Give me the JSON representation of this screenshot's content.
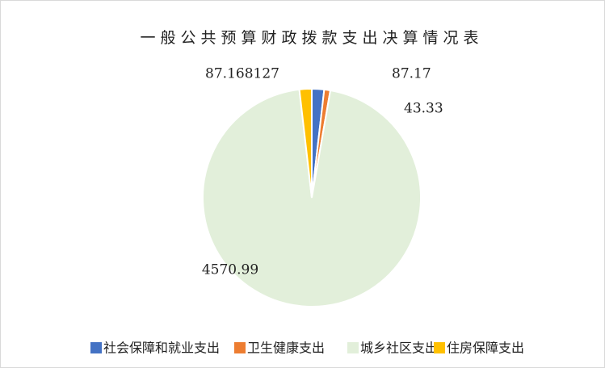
{
  "chart_data": {
    "type": "pie",
    "title": "一般公共预算财政拨款支出决算情况表",
    "categories": [
      "社会保障和就业支出",
      "卫生健康支出",
      "城乡社区支出",
      "住房保障支出"
    ],
    "values": [
      87.17,
      43.33,
      4570.99,
      87.168127
    ],
    "colors": [
      "#4472c4",
      "#ed7d31",
      "#e2efda",
      "#ffc000"
    ]
  }
}
